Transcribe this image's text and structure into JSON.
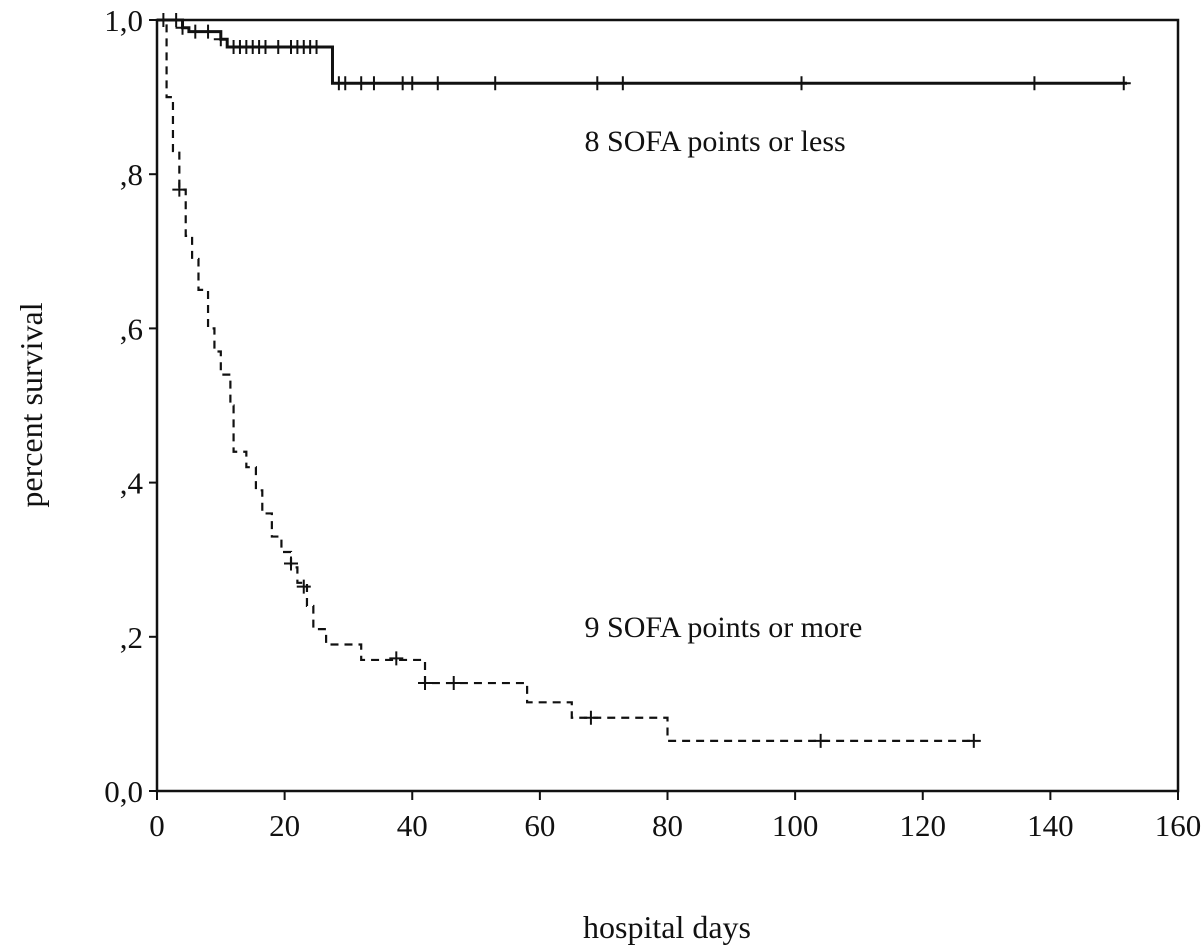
{
  "chart_data": {
    "type": "line",
    "title": "",
    "xlabel": "hospital days",
    "ylabel": "percent survival",
    "xlim": [
      0,
      160
    ],
    "ylim": [
      0,
      1
    ],
    "xticks": [
      0,
      20,
      40,
      60,
      80,
      100,
      120,
      140,
      160
    ],
    "xtick_labels": [
      "0",
      "20",
      "40",
      "60",
      "80",
      "100",
      "120",
      "140",
      "160"
    ],
    "yticks": [
      0,
      0.2,
      0.4,
      0.6,
      0.8,
      1.0
    ],
    "ytick_labels": [
      "0,0",
      ",2",
      ",4",
      ",6",
      ",8",
      "1,0"
    ],
    "grid": false,
    "legend": "none",
    "annotations": [
      {
        "text": "8 SOFA points or less",
        "x": 67,
        "y": 0.83
      },
      {
        "text": "9 SOFA points or more",
        "x": 67,
        "y": 0.2
      }
    ],
    "series": [
      {
        "label": "8 SOFA points or less",
        "style": "solid",
        "color": "#111111",
        "steps": [
          [
            0,
            1.0
          ],
          [
            4,
            0.99
          ],
          [
            5,
            0.985
          ],
          [
            10,
            0.975
          ],
          [
            11,
            0.965
          ],
          [
            27.5,
            0.918
          ],
          [
            152,
            0.918
          ]
        ],
        "censored": [
          [
            1,
            1.0
          ],
          [
            3,
            1.0
          ],
          [
            4,
            0.99
          ],
          [
            6,
            0.985
          ],
          [
            8,
            0.985
          ],
          [
            10,
            0.975
          ],
          [
            12,
            0.965
          ],
          [
            13,
            0.965
          ],
          [
            14,
            0.965
          ],
          [
            15,
            0.965
          ],
          [
            16,
            0.965
          ],
          [
            17,
            0.965
          ],
          [
            19,
            0.965
          ],
          [
            21,
            0.965
          ],
          [
            22,
            0.965
          ],
          [
            23,
            0.965
          ],
          [
            24,
            0.965
          ],
          [
            25,
            0.965
          ],
          [
            28.5,
            0.918
          ],
          [
            29.5,
            0.918
          ],
          [
            32,
            0.918
          ],
          [
            34,
            0.918
          ],
          [
            38.5,
            0.918
          ],
          [
            40,
            0.918
          ],
          [
            44,
            0.918
          ],
          [
            53,
            0.918
          ],
          [
            69,
            0.918
          ],
          [
            73,
            0.918
          ],
          [
            101,
            0.918
          ],
          [
            137.5,
            0.918
          ],
          [
            151.5,
            0.918
          ]
        ]
      },
      {
        "label": "9 SOFA points or more",
        "style": "dashed",
        "color": "#111111",
        "steps": [
          [
            0,
            1.0
          ],
          [
            1.5,
            0.9
          ],
          [
            2.5,
            0.83
          ],
          [
            3.5,
            0.78
          ],
          [
            4.5,
            0.72
          ],
          [
            5.5,
            0.69
          ],
          [
            6.5,
            0.65
          ],
          [
            8,
            0.6
          ],
          [
            9,
            0.57
          ],
          [
            10,
            0.54
          ],
          [
            11.5,
            0.5
          ],
          [
            12,
            0.44
          ],
          [
            14,
            0.42
          ],
          [
            15.5,
            0.39
          ],
          [
            16.5,
            0.36
          ],
          [
            18,
            0.33
          ],
          [
            19.5,
            0.31
          ],
          [
            21,
            0.29
          ],
          [
            22,
            0.27
          ],
          [
            23.5,
            0.24
          ],
          [
            24.5,
            0.21
          ],
          [
            26.5,
            0.19
          ],
          [
            32,
            0.17
          ],
          [
            42,
            0.14
          ],
          [
            58,
            0.115
          ],
          [
            65,
            0.095
          ],
          [
            80,
            0.065
          ],
          [
            128,
            0.065
          ]
        ],
        "censored": [
          [
            3.5,
            0.78
          ],
          [
            21,
            0.295
          ],
          [
            23,
            0.265
          ],
          [
            37.5,
            0.172
          ],
          [
            42,
            0.14
          ],
          [
            46.5,
            0.14
          ],
          [
            68,
            0.095
          ],
          [
            104,
            0.065
          ],
          [
            128,
            0.065
          ]
        ]
      }
    ]
  }
}
